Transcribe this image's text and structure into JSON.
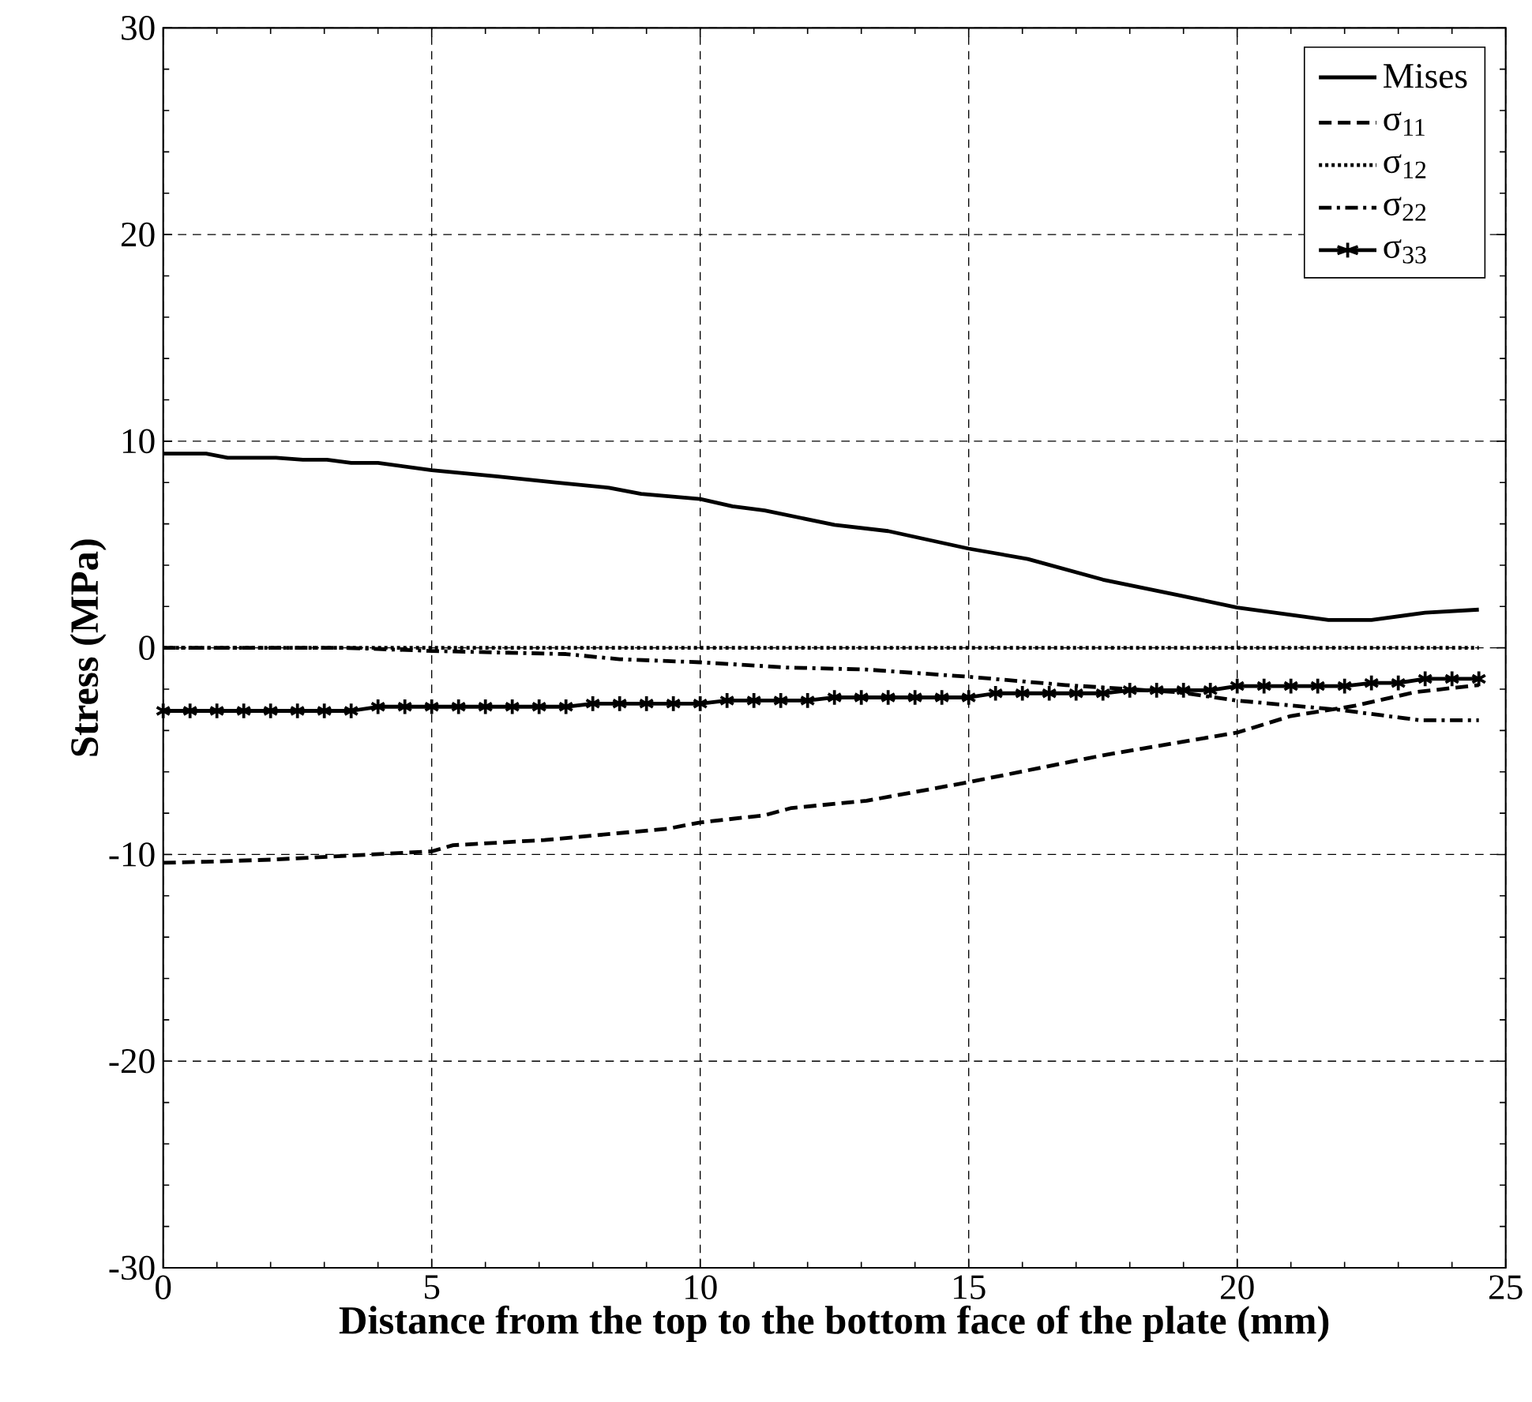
{
  "chart_data": {
    "type": "line",
    "xlabel": "Distance from the top to the bottom face of the plate (mm)",
    "ylabel": "Stress (MPa)",
    "xlim": [
      0,
      25
    ],
    "xticks": [
      0,
      5,
      10,
      15,
      20,
      25
    ],
    "ylim": [
      -30,
      30
    ],
    "yticks": [
      -30,
      -20,
      -10,
      0,
      10,
      20,
      30
    ],
    "grid": true,
    "legend": "top right",
    "series": [
      {
        "name": "Mises",
        "color": "#000000",
        "line_style": "solid",
        "marker": "none",
        "x": [
          0,
          0.8,
          1.2,
          2.1,
          2.6,
          3.05,
          3.5,
          4.0,
          5.0,
          6.2,
          7.3,
          8.3,
          8.9,
          10.0,
          10.6,
          11.2,
          12.5,
          13.5,
          15.0,
          16.1,
          17.5,
          18.9,
          20.0,
          21.7,
          22.5,
          23.5,
          24.5
        ],
        "values": [
          9.4,
          9.4,
          9.2,
          9.2,
          9.1,
          9.1,
          8.95,
          8.95,
          8.6,
          8.3,
          8.0,
          7.75,
          7.45,
          7.2,
          6.85,
          6.65,
          5.95,
          5.65,
          4.8,
          4.3,
          3.3,
          2.55,
          1.95,
          1.35,
          1.35,
          1.7,
          1.85
        ]
      },
      {
        "name": "σ$_{11}$",
        "color": "#000000",
        "line_style": "dashed",
        "marker": "none",
        "x": [
          0,
          0.8,
          2.0,
          3.5,
          5.0,
          5.4,
          7.1,
          9.4,
          10.0,
          11.2,
          11.7,
          13.1,
          15.0,
          17.5,
          20.0,
          21.0,
          22.2,
          23.3,
          24.5
        ],
        "values": [
          -10.4,
          -10.35,
          -10.25,
          -10.05,
          -9.85,
          -9.55,
          -9.3,
          -8.75,
          -8.45,
          -8.1,
          -7.75,
          -7.4,
          -6.5,
          -5.2,
          -4.1,
          -3.3,
          -2.8,
          -2.15,
          -1.8
        ]
      },
      {
        "name": "σ$_{12}$",
        "color": "#000000",
        "line_style": "dotted",
        "marker": "none",
        "x": [
          0,
          24.5
        ],
        "values": [
          0,
          0
        ]
      },
      {
        "name": "σ$_{22}$",
        "color": "#000000",
        "line_style": "dashdot",
        "marker": "none",
        "x": [
          0,
          3.4,
          5.0,
          7.5,
          8.5,
          10.0,
          11.6,
          13.1,
          15.0,
          16.8,
          18.9,
          20.0,
          21.9,
          23.4,
          24.5
        ],
        "values": [
          0,
          0,
          -0.15,
          -0.3,
          -0.55,
          -0.7,
          -0.95,
          -1.05,
          -1.4,
          -1.8,
          -2.15,
          -2.55,
          -3.0,
          -3.5,
          -3.5
        ]
      },
      {
        "name": "σ$_{33}$",
        "color": "#000000",
        "line_style": "solid",
        "marker": "cross",
        "x": [
          0,
          0.5,
          1,
          1.5,
          2,
          2.5,
          3,
          3.5,
          4,
          4.5,
          5,
          5.5,
          6,
          6.5,
          7,
          7.5,
          8,
          8.5,
          9,
          9.5,
          10,
          10.5,
          11,
          11.5,
          12,
          12.5,
          13,
          13.5,
          14,
          14.5,
          15,
          15.5,
          16,
          16.5,
          17,
          17.5,
          18,
          18.5,
          19,
          19.5,
          20,
          20.5,
          21,
          21.5,
          22,
          22.5,
          23,
          23.5,
          24,
          24.5
        ],
        "values": [
          -3.05,
          -3.05,
          -3.05,
          -3.05,
          -3.05,
          -3.05,
          -3.05,
          -3.05,
          -2.85,
          -2.85,
          -2.85,
          -2.85,
          -2.85,
          -2.85,
          -2.85,
          -2.85,
          -2.7,
          -2.7,
          -2.7,
          -2.7,
          -2.7,
          -2.55,
          -2.55,
          -2.55,
          -2.55,
          -2.4,
          -2.4,
          -2.4,
          -2.4,
          -2.4,
          -2.4,
          -2.2,
          -2.2,
          -2.2,
          -2.2,
          -2.2,
          -2.05,
          -2.05,
          -2.05,
          -2.05,
          -1.85,
          -1.85,
          -1.85,
          -1.85,
          -1.85,
          -1.7,
          -1.7,
          -1.5,
          -1.5,
          -1.5
        ]
      }
    ]
  }
}
